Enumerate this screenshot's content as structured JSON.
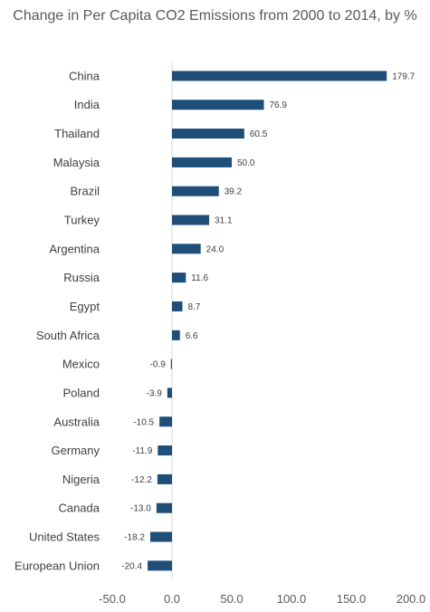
{
  "chart_data": {
    "type": "bar",
    "orientation": "horizontal",
    "title": "Change in Per Capita CO2 Emissions from 2000 to 2014, by %",
    "categories": [
      "China",
      "India",
      "Thailand",
      "Malaysia",
      "Brazil",
      "Turkey",
      "Argentina",
      "Russia",
      "Egypt",
      "South Africa",
      "Mexico",
      "Poland",
      "Australia",
      "Germany",
      "Nigeria",
      "Canada",
      "United States",
      "European Union"
    ],
    "values": [
      179.7,
      76.9,
      60.5,
      50.0,
      39.2,
      31.1,
      24.0,
      11.6,
      8.7,
      6.6,
      -0.9,
      -3.9,
      -10.5,
      -11.9,
      -12.2,
      -13.0,
      -18.2,
      -20.4
    ],
    "data_labels": [
      "179.7",
      "76.9",
      "60.5",
      "50.0",
      "39.2",
      "31.1",
      "24.0",
      "11.6",
      "8.7",
      "6.6",
      "-0.9",
      "-3.9",
      "-10.5",
      "-11.9",
      "-12.2",
      "-13.0",
      "-18.2",
      "-20.4"
    ],
    "xlim": [
      -50,
      200
    ],
    "xticks": [
      -50,
      0,
      50,
      100,
      150,
      200
    ],
    "xtick_labels": [
      "-50.0",
      "0.0",
      "50.0",
      "100.0",
      "150.0",
      "200.0"
    ],
    "xlabel": "",
    "ylabel": "",
    "grid": false,
    "legend": "none",
    "bar_color": "#1f4e79"
  }
}
